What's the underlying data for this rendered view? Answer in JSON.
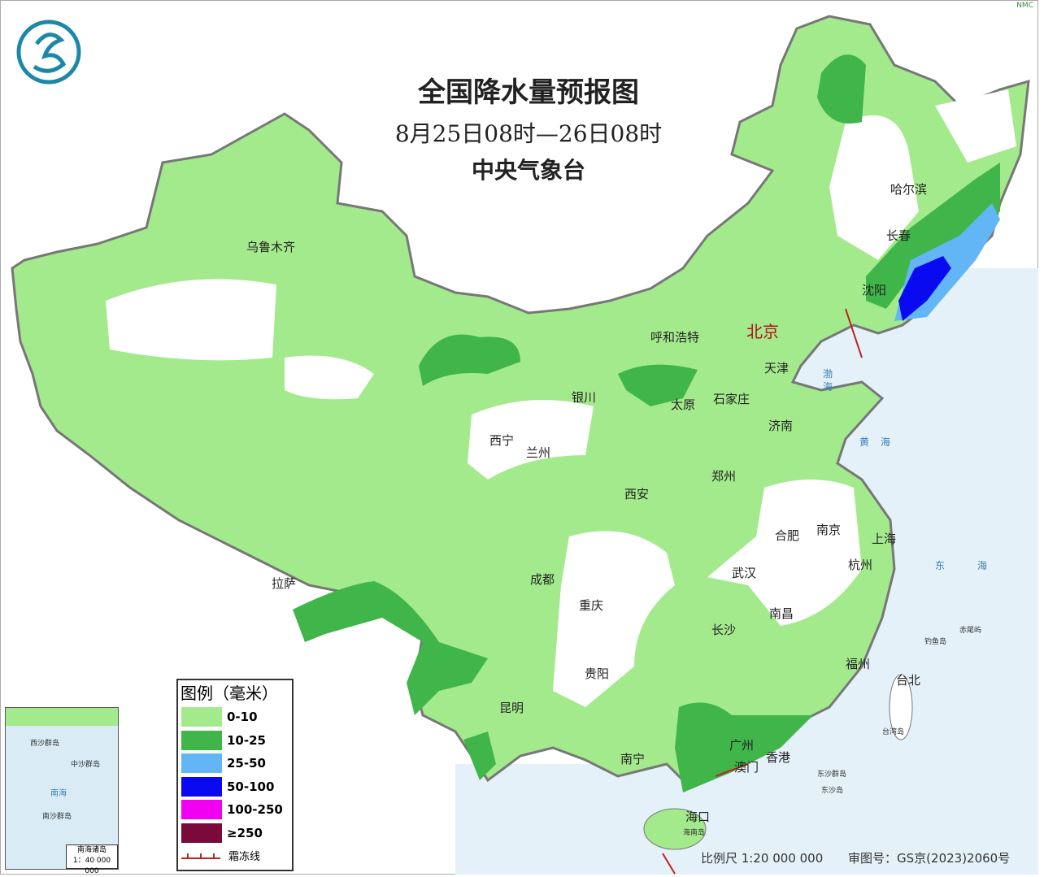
{
  "header": {
    "title": "全国降水量预报图",
    "period": "8月25日08时—26日08时",
    "agency": "中央气象台",
    "logo_text": "NMC"
  },
  "legend": {
    "title": "图例（毫米）",
    "items": [
      {
        "label": "0-10",
        "color": "#a3ea8c"
      },
      {
        "label": "10-25",
        "color": "#3fb54a"
      },
      {
        "label": "25-50",
        "color": "#63b6f5"
      },
      {
        "label": "50-100",
        "color": "#0a0af0"
      },
      {
        "label": "100-250",
        "color": "#f200f2"
      },
      {
        "label": "≥250",
        "color": "#7a0a3a"
      }
    ],
    "frost_line": "霜冻线"
  },
  "cities": {
    "urumqi": "乌鲁木齐",
    "harbin": "哈尔滨",
    "changchun": "长春",
    "shenyang": "沈阳",
    "beijing": "北京",
    "tianjin": "天津",
    "hohhot": "呼和浩特",
    "shijiazhuang": "石家庄",
    "taiyuan": "太原",
    "yinchuan": "银川",
    "jinan": "济南",
    "xining": "西宁",
    "lanzhou": "兰州",
    "zhengzhou": "郑州",
    "xian": "西安",
    "hefei": "合肥",
    "nanjing": "南京",
    "shanghai": "上海",
    "hangzhou": "杭州",
    "wuhan": "武汉",
    "chengdu": "成都",
    "lhasa": "拉萨",
    "chongqing": "重庆",
    "nanchang": "南昌",
    "changsha": "长沙",
    "fuzhou": "福州",
    "taipei": "台北",
    "guiyang": "贵阳",
    "kunming": "昆明",
    "nanning": "南宁",
    "guangzhou": "广州",
    "hongkong": "香港",
    "macau": "澳门",
    "haikou": "海口"
  },
  "seas": {
    "bohai": "渤海",
    "yellow": "黄海",
    "east": "东海"
  },
  "islands": {
    "chiwei": "赤尾屿",
    "diaoyu": "钓鱼岛",
    "taiwan": "台湾岛",
    "dongsha": "东沙群岛",
    "dongsha2": "东沙岛",
    "hainan": "海南岛"
  },
  "inset": {
    "label": "南海诸岛",
    "scale": "1：40 000 000",
    "sea": "南海",
    "nansha": "南沙群岛",
    "xisha": "西沙群岛",
    "zhongsha": "中沙群岛"
  },
  "footer": {
    "scale": "比例尺 1:20 000 000",
    "approval": "审图号：GS京(2023)2060号"
  }
}
